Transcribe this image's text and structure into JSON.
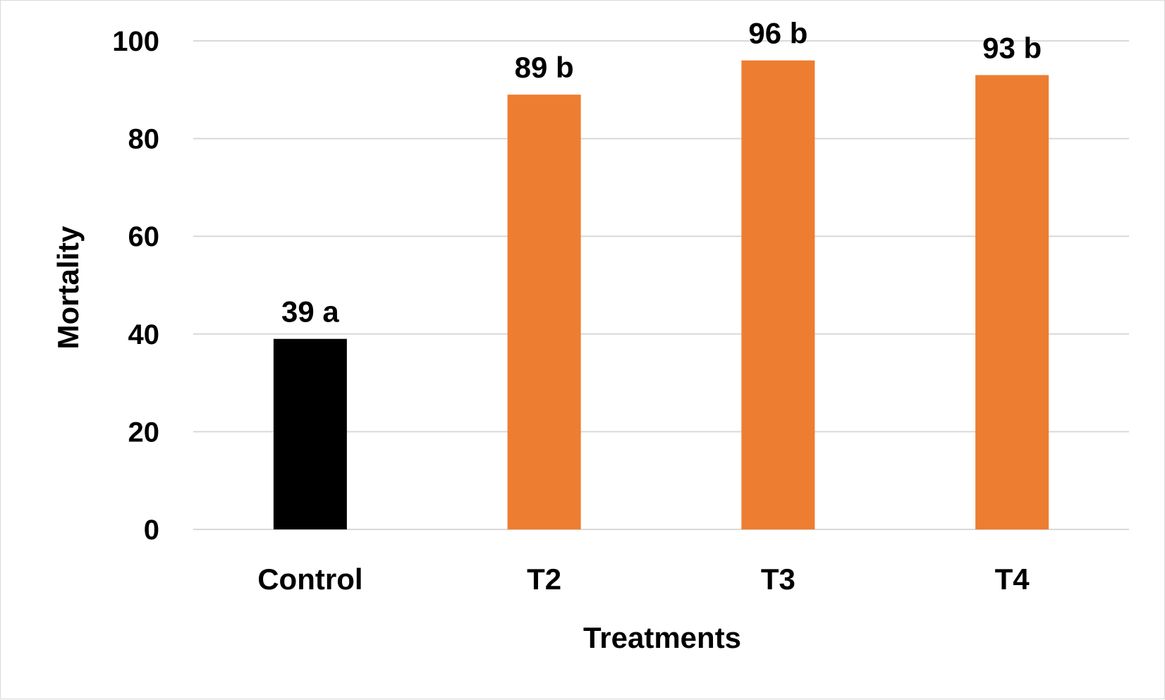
{
  "chart_data": {
    "type": "bar",
    "categories": [
      "Control",
      "T2",
      "T3",
      "T4"
    ],
    "values": [
      39,
      89,
      96,
      93
    ],
    "data_labels": [
      "39 a",
      "89 b",
      "96 b",
      "93 b"
    ],
    "bar_colors": [
      "#000000",
      "#ED7D31",
      "#ED7D31",
      "#ED7D31"
    ],
    "xlabel": "Treatments",
    "ylabel": "Mortality",
    "ylim": [
      0,
      100
    ],
    "yticks": [
      0,
      20,
      40,
      60,
      80,
      100
    ],
    "grid": true,
    "legend": "none"
  },
  "colors": {
    "gridline": "#d9d9d9",
    "frame": "#d9d9d9",
    "control": "#000000",
    "treatment": "#ED7D31"
  }
}
